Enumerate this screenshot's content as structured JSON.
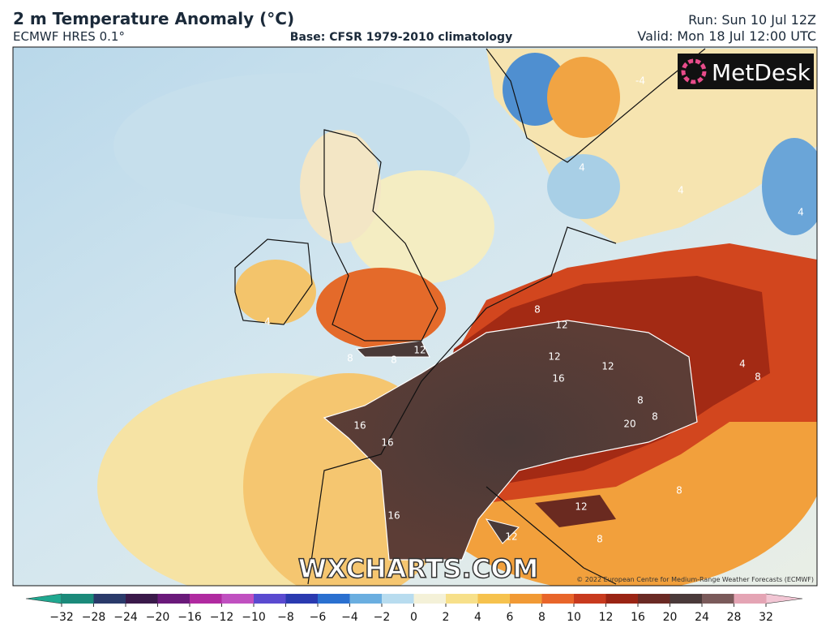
{
  "header": {
    "title": "2 m Temperature Anomaly (°C)",
    "model": "ECMWF HRES 0.1°",
    "base": "Base: CFSR 1979-2010 climatology",
    "run": "Run: Sun 10 Jul 12Z",
    "valid": "Valid: Mon 18 Jul 12:00 UTC"
  },
  "map": {
    "logo": "MetDesk",
    "watermark": "WXCHARTS.COM",
    "copyright": "© 2022 European Centre for Medium-Range Weather Forecasts (ECMWF)",
    "contour_labels": [
      "8",
      "12",
      "12",
      "12",
      "16",
      "16",
      "16",
      "16",
      "20",
      "12",
      "8",
      "8",
      "8",
      "8",
      "4",
      "8",
      "12",
      "12",
      "8",
      "-4",
      "4",
      "4",
      "4",
      "8",
      "4"
    ]
  },
  "colorbar": {
    "ticks": [
      "−32",
      "−28",
      "−24",
      "−20",
      "−16",
      "−12",
      "−10",
      "−8",
      "−6",
      "−4",
      "−2",
      "0",
      "2",
      "4",
      "6",
      "8",
      "10",
      "12",
      "16",
      "20",
      "24",
      "28",
      "32"
    ]
  }
}
